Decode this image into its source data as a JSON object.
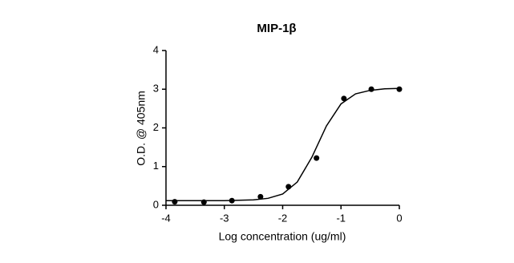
{
  "chart_data": {
    "type": "scatter",
    "title": "MIP-1β",
    "x_label": "Log concentration (ug/ml)",
    "y_label": "O.D. @ 405nm",
    "xlim": [
      -4,
      0
    ],
    "ylim": [
      0,
      4
    ],
    "xticks": [
      -4,
      -3,
      -2,
      -1,
      0
    ],
    "yticks": [
      0,
      1,
      2,
      3,
      4
    ],
    "grid": false,
    "series": [
      {
        "kind": "points",
        "color": "#000000",
        "x": [
          -3.85,
          -3.35,
          -2.87,
          -2.38,
          -1.9,
          -1.42,
          -0.95,
          -0.48,
          0
        ],
        "values": [
          0.09,
          0.08,
          0.12,
          0.22,
          0.48,
          1.22,
          2.76,
          3.0,
          3.0
        ]
      },
      {
        "kind": "curve",
        "color": "#000000",
        "x": [
          -4,
          -3.5,
          -3,
          -2.5,
          -2.25,
          -2,
          -1.75,
          -1.5,
          -1.25,
          -1,
          -0.75,
          -0.5,
          -0.25,
          0
        ],
        "values": [
          0.12,
          0.12,
          0.12,
          0.14,
          0.18,
          0.29,
          0.6,
          1.24,
          2.05,
          2.62,
          2.88,
          2.97,
          3.01,
          3.02
        ]
      }
    ]
  }
}
